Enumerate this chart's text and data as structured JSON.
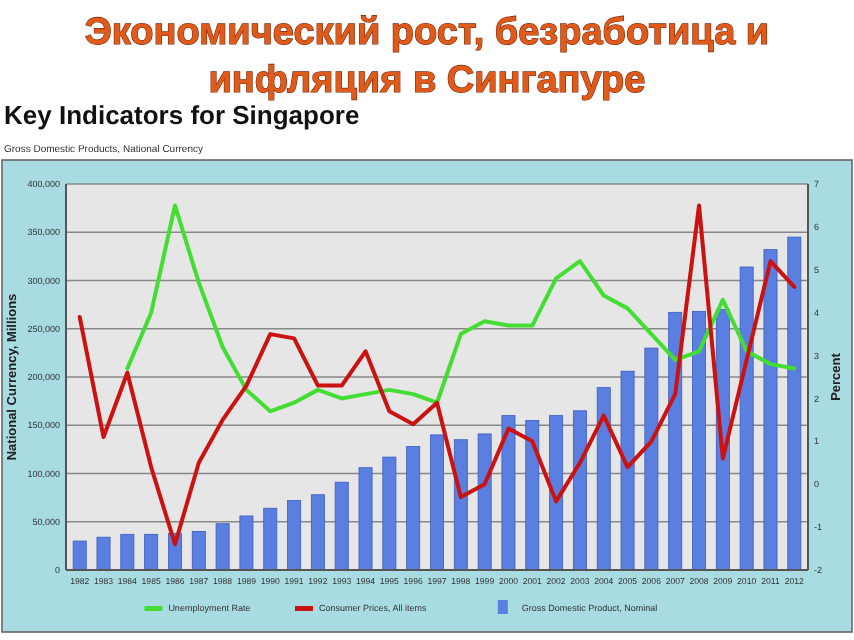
{
  "chart_data": {
    "type": "bar",
    "title": "Экономический рост, безработица и инфляция в Сингапуре",
    "subtitle": "Key Indicators for Singapore",
    "annotations": [
      "Gross Domestic Products, National Currency"
    ],
    "ylabel": "National Currency, Millions",
    "y2label": "Percent",
    "categories": [
      "1982",
      "1983",
      "1984",
      "1985",
      "1986",
      "1987",
      "1988",
      "1989",
      "1990",
      "1991",
      "1992",
      "1993",
      "1994",
      "1995",
      "1996",
      "1997",
      "1998",
      "1999",
      "2000",
      "2001",
      "2002",
      "2003",
      "2004",
      "2005",
      "2006",
      "2007",
      "2008",
      "2009",
      "2010",
      "2011",
      "2012"
    ],
    "series": [
      {
        "name": "Unemployment Rate",
        "type": "line",
        "axis": "y2",
        "color": "#44dd33",
        "values": [
          null,
          null,
          2.7,
          4.0,
          6.5,
          4.7,
          3.2,
          2.2,
          1.7,
          1.9,
          2.2,
          2.0,
          2.1,
          2.2,
          2.1,
          1.9,
          3.5,
          3.8,
          3.7,
          3.7,
          4.8,
          5.2,
          4.4,
          4.1,
          3.5,
          2.9,
          3.1,
          4.3,
          3.1,
          2.8,
          2.7
        ]
      },
      {
        "name": "Consumer Prices, All items",
        "type": "line",
        "axis": "y2",
        "color": "#cc1111",
        "values": [
          3.9,
          1.1,
          2.6,
          0.4,
          -1.4,
          0.5,
          1.5,
          2.3,
          3.5,
          3.4,
          2.3,
          2.3,
          3.1,
          1.7,
          1.4,
          1.9,
          -0.3,
          0.0,
          1.3,
          1.0,
          -0.4,
          0.5,
          1.6,
          0.4,
          1.0,
          2.1,
          6.5,
          0.6,
          2.9,
          5.2,
          4.6
        ]
      },
      {
        "name": "Gross Domestic Product, Nominal",
        "color": "#5b7fe0",
        "values": [
          30000,
          34000,
          37000,
          37000,
          38000,
          40000,
          48000,
          56000,
          64000,
          72000,
          78000,
          91000,
          106000,
          117000,
          128000,
          140000,
          135000,
          141000,
          160000,
          155000,
          160000,
          165000,
          189000,
          206000,
          230000,
          267000,
          268000,
          270000,
          314000,
          332000,
          345000
        ]
      }
    ],
    "ylim": [
      0,
      400000
    ],
    "yticks": [
      0,
      {
        "value": 50000,
        "label": "50,000"
      },
      {
        "value": 100000,
        "label": "100,000"
      },
      {
        "value": 150000,
        "label": "150,000"
      },
      {
        "value": 200000,
        "label": "200,000"
      },
      {
        "value": 250000,
        "label": "250,000"
      },
      {
        "value": 300000,
        "label": "300,000"
      },
      {
        "value": 350000,
        "label": "350,000"
      },
      {
        "value": 400000,
        "label": "400,000"
      }
    ],
    "y2lim": [
      -2,
      7
    ],
    "y2ticks": [
      -2,
      -1,
      0,
      1,
      2,
      3,
      4,
      5,
      6,
      7
    ],
    "grid": "y",
    "legend": "bottom"
  }
}
